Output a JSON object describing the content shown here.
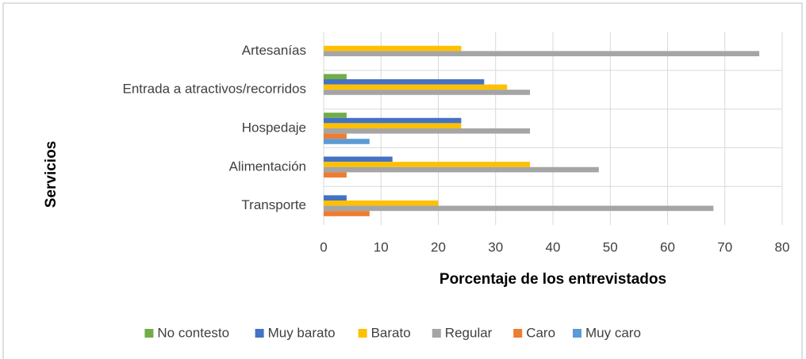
{
  "chart_data": {
    "type": "bar",
    "orientation": "horizontal",
    "xlabel": "Porcentaje de los entrevistados",
    "ylabel": "Servicios",
    "categories": [
      "Artesanías",
      "Entrada a atractivos/recorridos",
      "Hospedaje",
      "Alimentación",
      "Transporte"
    ],
    "series": [
      {
        "name": "No contesto",
        "color": "#70ad47",
        "values": [
          0,
          4,
          4,
          0,
          0
        ]
      },
      {
        "name": "Muy barato",
        "color": "#4472c4",
        "values": [
          0,
          28,
          24,
          12,
          4
        ]
      },
      {
        "name": "Barato",
        "color": "#ffc000",
        "values": [
          24,
          32,
          24,
          36,
          20
        ]
      },
      {
        "name": "Regular",
        "color": "#a5a5a5",
        "values": [
          76,
          36,
          36,
          48,
          68
        ]
      },
      {
        "name": "Caro",
        "color": "#ed7d31",
        "values": [
          0,
          0,
          4,
          4,
          8
        ]
      },
      {
        "name": "Muy caro",
        "color": "#5b9bd5",
        "values": [
          0,
          0,
          8,
          0,
          0
        ]
      }
    ],
    "xlim": [
      0,
      80
    ],
    "xticks": [
      0,
      10,
      20,
      30,
      40,
      50,
      60,
      70,
      80
    ],
    "grid": true,
    "legend": "bottom"
  }
}
